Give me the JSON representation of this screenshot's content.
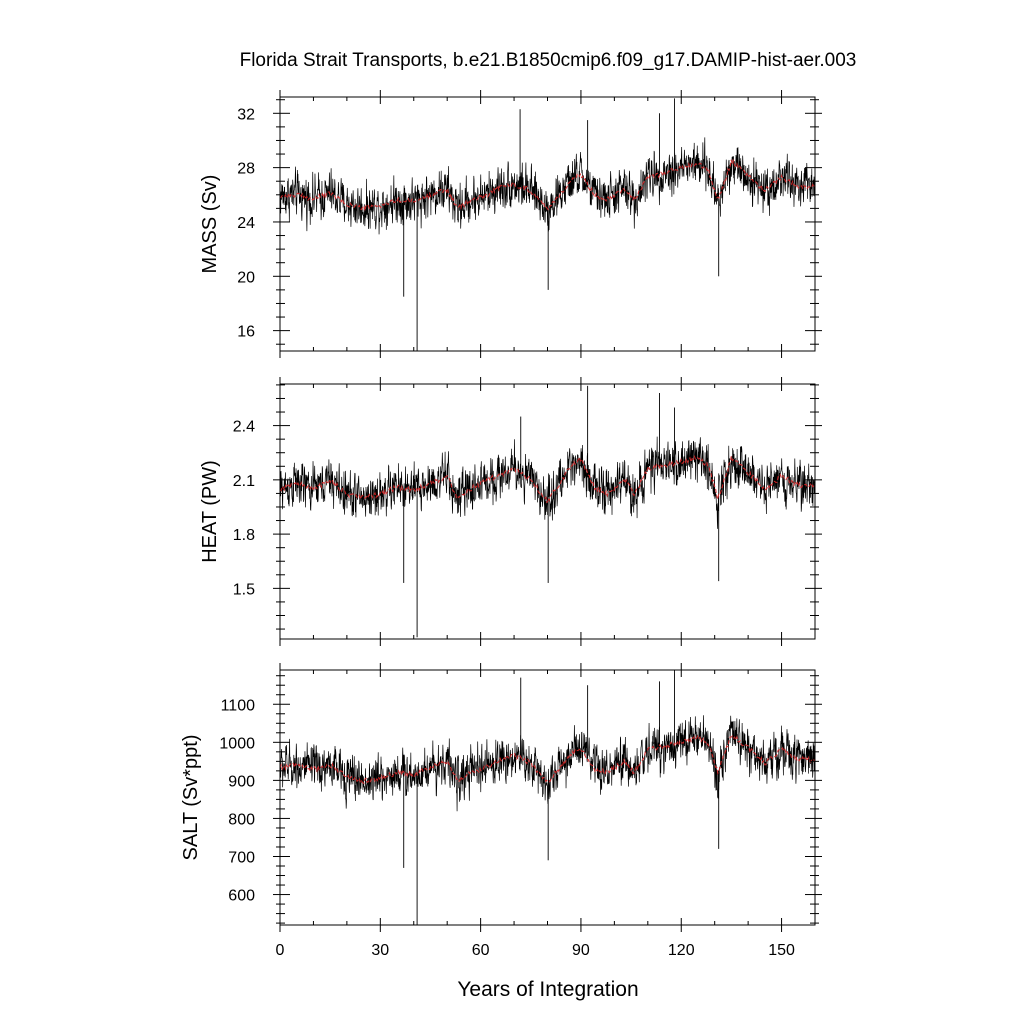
{
  "title": "Florida Strait Transports, b.e21.B1850cmip6.f09_g17.DAMIP-hist-aer.003",
  "colors": {
    "raw_series": "#000000",
    "smoothed_series": "#d62728"
  },
  "chart_data": [
    {
      "type": "line",
      "ylabel": "MASS (Sv)",
      "xlim": [
        0,
        160
      ],
      "ylim": [
        14.5,
        33.2
      ],
      "xticks": [
        0,
        30,
        60,
        90,
        120,
        150
      ],
      "yticks": [
        16,
        20,
        24,
        28,
        32
      ],
      "grid": false,
      "baseline": 25.9,
      "smoothed_points": [
        [
          0,
          25.9
        ],
        [
          5,
          26.0
        ],
        [
          10,
          25.7
        ],
        [
          15,
          26.1
        ],
        [
          20,
          25.3
        ],
        [
          25,
          25.0
        ],
        [
          30,
          25.2
        ],
        [
          35,
          25.6
        ],
        [
          40,
          25.5
        ],
        [
          45,
          26.0
        ],
        [
          50,
          26.4
        ],
        [
          53,
          25.0
        ],
        [
          57,
          25.6
        ],
        [
          62,
          26.0
        ],
        [
          65,
          26.5
        ],
        [
          70,
          26.8
        ],
        [
          75,
          26.3
        ],
        [
          80,
          25.0
        ],
        [
          83,
          25.8
        ],
        [
          87,
          27.0
        ],
        [
          90,
          27.5
        ],
        [
          94,
          26.0
        ],
        [
          98,
          25.7
        ],
        [
          103,
          26.5
        ],
        [
          106,
          25.6
        ],
        [
          110,
          27.3
        ],
        [
          115,
          27.6
        ],
        [
          120,
          28.0
        ],
        [
          125,
          28.3
        ],
        [
          128,
          27.8
        ],
        [
          131,
          25.6
        ],
        [
          135,
          28.5
        ],
        [
          140,
          27.4
        ],
        [
          145,
          26.3
        ],
        [
          150,
          27.3
        ],
        [
          155,
          26.6
        ],
        [
          160,
          26.6
        ]
      ],
      "extreme_spikes": [
        [
          41.0,
          14.5
        ],
        [
          37.0,
          18.5
        ],
        [
          80.2,
          19.0
        ],
        [
          131.2,
          20.0
        ],
        [
          71.8,
          32.3
        ],
        [
          92.0,
          31.5
        ],
        [
          118.0,
          33.1
        ],
        [
          113.5,
          32.0
        ]
      ]
    },
    {
      "type": "line",
      "ylabel": "HEAT (PW)",
      "xlim": [
        0,
        160
      ],
      "ylim": [
        1.22,
        2.63
      ],
      "xticks": [
        0,
        30,
        60,
        90,
        120,
        150
      ],
      "yticks": [
        1.5,
        1.8,
        2.1,
        2.4
      ],
      "grid": false,
      "baseline": 2.05,
      "smoothed_points": [
        [
          0,
          2.05
        ],
        [
          5,
          2.08
        ],
        [
          10,
          2.05
        ],
        [
          15,
          2.1
        ],
        [
          20,
          2.02
        ],
        [
          25,
          2.0
        ],
        [
          30,
          2.02
        ],
        [
          35,
          2.06
        ],
        [
          40,
          2.04
        ],
        [
          45,
          2.08
        ],
        [
          50,
          2.12
        ],
        [
          53,
          2.0
        ],
        [
          57,
          2.05
        ],
        [
          62,
          2.1
        ],
        [
          65,
          2.12
        ],
        [
          70,
          2.16
        ],
        [
          75,
          2.1
        ],
        [
          80,
          1.98
        ],
        [
          83,
          2.06
        ],
        [
          87,
          2.18
        ],
        [
          90,
          2.22
        ],
        [
          94,
          2.06
        ],
        [
          98,
          2.02
        ],
        [
          103,
          2.1
        ],
        [
          106,
          2.02
        ],
        [
          110,
          2.16
        ],
        [
          115,
          2.18
        ],
        [
          120,
          2.2
        ],
        [
          125,
          2.22
        ],
        [
          128,
          2.18
        ],
        [
          131,
          2.0
        ],
        [
          135,
          2.22
        ],
        [
          140,
          2.14
        ],
        [
          145,
          2.05
        ],
        [
          150,
          2.12
        ],
        [
          155,
          2.07
        ],
        [
          160,
          2.07
        ]
      ],
      "extreme_spikes": [
        [
          41.0,
          1.23
        ],
        [
          37.0,
          1.53
        ],
        [
          80.2,
          1.53
        ],
        [
          131.2,
          1.54
        ],
        [
          72.0,
          2.45
        ],
        [
          92.0,
          2.62
        ],
        [
          113.5,
          2.58
        ],
        [
          118.0,
          2.5
        ]
      ]
    },
    {
      "type": "line",
      "ylabel": "SALT (Sv*ppt)",
      "xlim": [
        0,
        160
      ],
      "ylim": [
        520,
        1190
      ],
      "xticks": [
        0,
        30,
        60,
        90,
        120,
        150
      ],
      "yticks": [
        600,
        700,
        800,
        900,
        1000,
        1100
      ],
      "grid": false,
      "baseline": 930,
      "smoothed_points": [
        [
          0,
          935
        ],
        [
          5,
          940
        ],
        [
          10,
          928
        ],
        [
          15,
          942
        ],
        [
          20,
          910
        ],
        [
          25,
          898
        ],
        [
          30,
          905
        ],
        [
          35,
          920
        ],
        [
          40,
          915
        ],
        [
          45,
          935
        ],
        [
          50,
          950
        ],
        [
          53,
          900
        ],
        [
          57,
          922
        ],
        [
          62,
          935
        ],
        [
          65,
          950
        ],
        [
          70,
          965
        ],
        [
          75,
          945
        ],
        [
          80,
          895
        ],
        [
          83,
          925
        ],
        [
          87,
          970
        ],
        [
          90,
          985
        ],
        [
          94,
          930
        ],
        [
          98,
          920
        ],
        [
          103,
          950
        ],
        [
          106,
          920
        ],
        [
          110,
          980
        ],
        [
          115,
          990
        ],
        [
          120,
          1000
        ],
        [
          125,
          1015
        ],
        [
          128,
          995
        ],
        [
          131,
          920
        ],
        [
          135,
          1020
        ],
        [
          140,
          985
        ],
        [
          145,
          945
        ],
        [
          150,
          980
        ],
        [
          155,
          955
        ],
        [
          160,
          955
        ]
      ],
      "extreme_spikes": [
        [
          41.0,
          520
        ],
        [
          37.0,
          670
        ],
        [
          80.2,
          690
        ],
        [
          131.2,
          720
        ],
        [
          72.0,
          1170
        ],
        [
          92.0,
          1150
        ],
        [
          118.0,
          1190
        ],
        [
          113.5,
          1160
        ]
      ]
    }
  ],
  "xlabel": "Years of Integration"
}
